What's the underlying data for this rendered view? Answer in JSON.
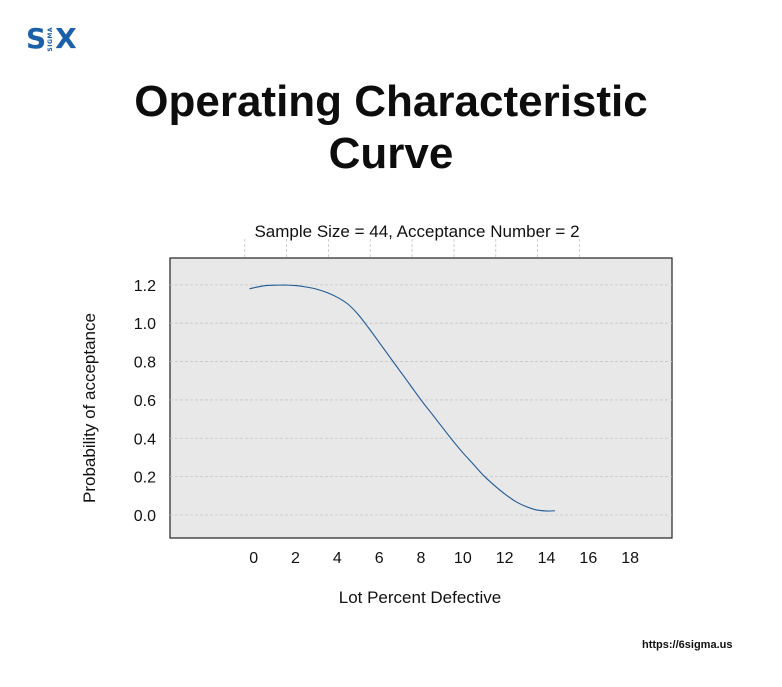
{
  "logo": {
    "left": "S",
    "middle": "SIGMA",
    "right": "X"
  },
  "title_line1": "Operating Characteristic",
  "title_line2": "Curve",
  "footer_url": "https://6sigma.us",
  "chart_data": {
    "type": "line",
    "title": "Sample Size = 44, Acceptance Number = 2",
    "xlabel": "Lot Percent Defective",
    "ylabel": "Probability of acceptance",
    "xlim": [
      -4,
      20
    ],
    "ylim": [
      -0.12,
      1.34
    ],
    "xticks": [
      0,
      2,
      4,
      6,
      8,
      10,
      12,
      14,
      16,
      18
    ],
    "yticks": [
      0.0,
      0.2,
      0.4,
      0.6,
      0.8,
      1.0,
      1.2
    ],
    "ytick_labels": [
      "0.0",
      "0.2",
      "0.4",
      "0.6",
      "0.8",
      "1.0",
      "1.2"
    ],
    "grid": true,
    "colors": {
      "line": "#1f5a96",
      "plot_bg": "#e8e8e8",
      "grid": "#c6c6c6"
    },
    "x": [
      -0.2,
      0.5,
      1.0,
      1.5,
      2.0,
      2.5,
      3.0,
      3.5,
      4.0,
      4.5,
      5.0,
      5.5,
      6.0,
      6.5,
      7.0,
      7.5,
      8.0,
      8.5,
      9.0,
      9.5,
      10.0,
      10.5,
      11.0,
      11.5,
      12.0,
      12.5,
      13.0,
      13.5,
      14.0,
      14.4
    ],
    "y": [
      1.18,
      1.195,
      1.198,
      1.199,
      1.196,
      1.189,
      1.178,
      1.16,
      1.135,
      1.1,
      1.045,
      0.975,
      0.9,
      0.825,
      0.75,
      0.675,
      0.6,
      0.53,
      0.46,
      0.39,
      0.325,
      0.265,
      0.205,
      0.155,
      0.11,
      0.072,
      0.045,
      0.027,
      0.021,
      0.022
    ]
  }
}
